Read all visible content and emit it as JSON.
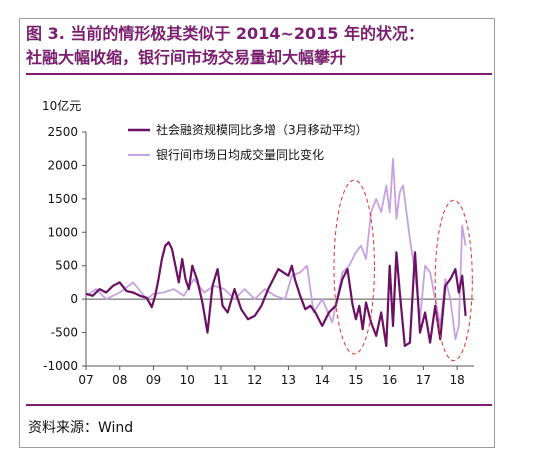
{
  "title_line1": "图 3. 当前的情形极其类似于 2014~2015 年的状况：",
  "title_line2": "社融大幅收缩，银行间市场交易量却大幅攀升",
  "source": "资料来源：Wind",
  "chart_data": {
    "type": "line",
    "ylabel": "10亿元",
    "ylim": [
      -1000,
      2500
    ],
    "yticks": [
      "2500",
      "2000",
      "1500",
      "1000",
      "500",
      "0",
      "-500",
      "-1000"
    ],
    "xlim": [
      2007.0,
      2018.5
    ],
    "xtick_labels": [
      "07",
      "08",
      "09",
      "10",
      "11",
      "12",
      "13",
      "14",
      "15",
      "16",
      "17",
      "18"
    ],
    "grid": false,
    "legend_position": "top-right",
    "series": [
      {
        "name": "社会融资规模同比多增（3月移动平均）",
        "color": "#6b1163",
        "x": [
          2007.0,
          2007.2,
          2007.4,
          2007.6,
          2007.8,
          2008.0,
          2008.2,
          2008.4,
          2008.6,
          2008.8,
          2008.95,
          2009.05,
          2009.15,
          2009.25,
          2009.35,
          2009.45,
          2009.55,
          2009.65,
          2009.75,
          2009.85,
          2009.95,
          2010.05,
          2010.15,
          2010.3,
          2010.45,
          2010.6,
          2010.75,
          2010.9,
          2011.05,
          2011.2,
          2011.4,
          2011.6,
          2011.8,
          2012.0,
          2012.2,
          2012.4,
          2012.55,
          2012.7,
          2012.85,
          2013.0,
          2013.1,
          2013.2,
          2013.35,
          2013.5,
          2013.65,
          2013.8,
          2014.0,
          2014.2,
          2014.4,
          2014.6,
          2014.75,
          2014.9,
          2015.0,
          2015.1,
          2015.2,
          2015.3,
          2015.45,
          2015.6,
          2015.75,
          2015.9,
          2016.0,
          2016.1,
          2016.2,
          2016.3,
          2016.45,
          2016.6,
          2016.75,
          2016.9,
          2017.05,
          2017.2,
          2017.35,
          2017.5,
          2017.65,
          2017.8,
          2017.95,
          2018.05,
          2018.15,
          2018.25
        ],
        "values": [
          80,
          50,
          150,
          100,
          200,
          250,
          120,
          100,
          50,
          20,
          -120,
          50,
          300,
          600,
          800,
          850,
          750,
          500,
          250,
          600,
          300,
          150,
          500,
          280,
          -50,
          -500,
          200,
          450,
          -100,
          -200,
          150,
          -150,
          -300,
          -250,
          -100,
          150,
          300,
          450,
          400,
          350,
          500,
          280,
          50,
          -150,
          -100,
          -200,
          -400,
          -200,
          -100,
          300,
          450,
          -80,
          -300,
          -100,
          -450,
          -50,
          -350,
          -550,
          -200,
          -700,
          500,
          -400,
          700,
          100,
          -700,
          -650,
          700,
          -500,
          -200,
          -650,
          -100,
          -600,
          200,
          300,
          450,
          100,
          350,
          -250
        ]
      },
      {
        "name": "银行间市场日均成交量同比变化",
        "color": "#c6a3e0",
        "x": [
          2007.0,
          2007.3,
          2007.6,
          2008.0,
          2008.4,
          2008.8,
          2009.0,
          2009.3,
          2009.6,
          2009.9,
          2010.2,
          2010.5,
          2010.8,
          2011.1,
          2011.4,
          2011.7,
          2012.0,
          2012.3,
          2012.6,
          2012.9,
          2013.1,
          2013.35,
          2013.55,
          2013.75,
          2014.0,
          2014.3,
          2014.6,
          2014.8,
          2015.0,
          2015.15,
          2015.3,
          2015.45,
          2015.6,
          2015.75,
          2015.9,
          2016.0,
          2016.1,
          2016.2,
          2016.3,
          2016.4,
          2016.5,
          2016.6,
          2016.75,
          2016.9,
          2017.05,
          2017.2,
          2017.35,
          2017.5,
          2017.65,
          2017.8,
          2017.95,
          2018.05,
          2018.15,
          2018.25
        ],
        "values": [
          50,
          150,
          0,
          100,
          250,
          0,
          80,
          100,
          150,
          50,
          300,
          100,
          200,
          150,
          0,
          150,
          0,
          150,
          50,
          0,
          350,
          400,
          500,
          -200,
          0,
          -350,
          400,
          500,
          700,
          800,
          600,
          1300,
          1500,
          1300,
          1700,
          1300,
          2100,
          1200,
          1600,
          1700,
          1300,
          900,
          400,
          -300,
          500,
          400,
          0,
          -400,
          300,
          0,
          -600,
          -400,
          1100,
          800
        ]
      }
    ],
    "annotations": [
      {
        "type": "dashed-ellipse",
        "color": "#e03030",
        "x_center": 2014.95,
        "y_center": 480,
        "x_radius": 0.6,
        "y_radius": 1300
      },
      {
        "type": "dashed-ellipse",
        "color": "#e03030",
        "x_center": 2017.9,
        "y_center": 280,
        "x_radius": 0.55,
        "y_radius": 1200
      }
    ]
  }
}
